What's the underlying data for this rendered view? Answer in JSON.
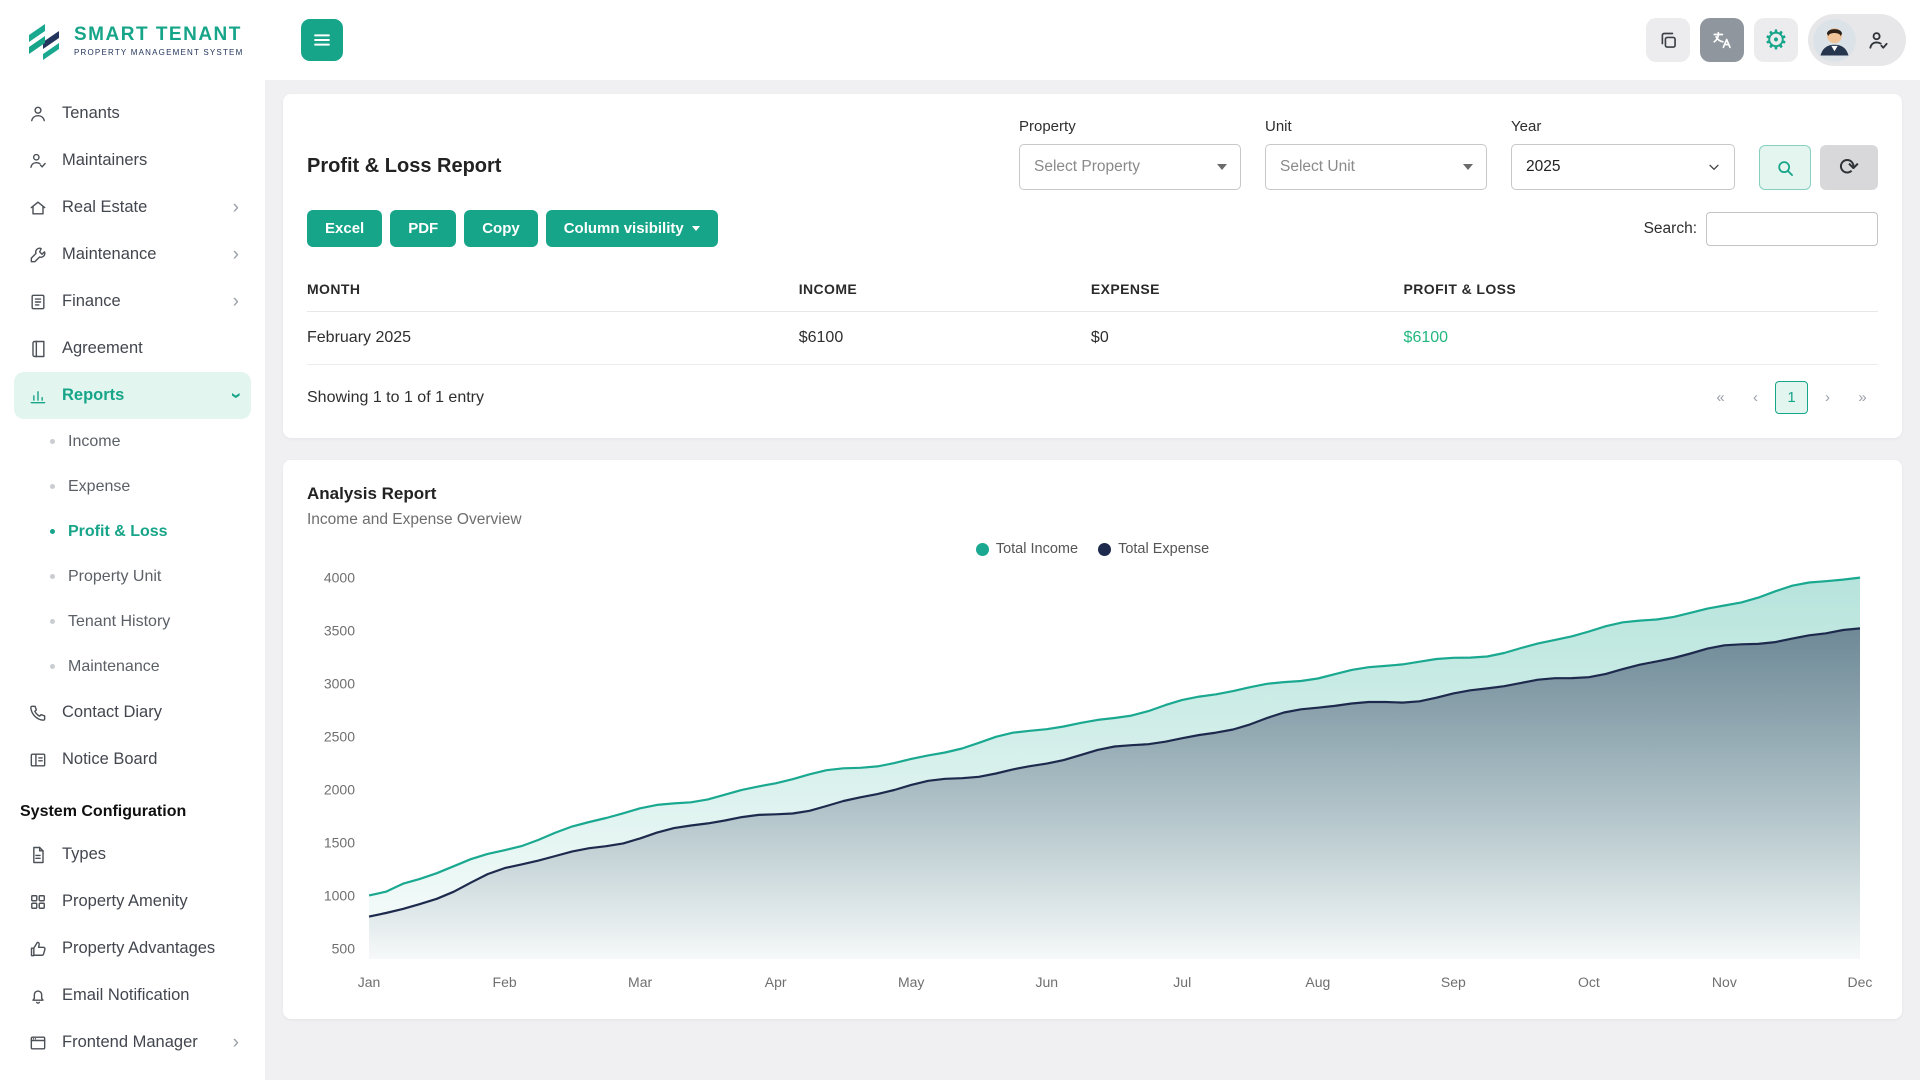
{
  "colors": {
    "primary": "#17A589",
    "primary_light": "#E3F5EF",
    "income": "#1AA990",
    "expense": "#1E2A4D",
    "profit": "#23B77E"
  },
  "icons": {
    "settings_glyph": "⚙",
    "refresh_glyph": "⟳",
    "chevron_right": "›"
  },
  "brand": {
    "name": "SMART TENANT",
    "tagline": "PROPERTY MANAGEMENT SYSTEM"
  },
  "sidebar": {
    "items": [
      {
        "label": "Tenants",
        "icon": "person"
      },
      {
        "label": "Maintainers",
        "icon": "person-check"
      },
      {
        "label": "Real Estate",
        "icon": "home",
        "chevron": "right"
      },
      {
        "label": "Maintenance",
        "icon": "wrench",
        "chevron": "right"
      },
      {
        "label": "Finance",
        "icon": "finance",
        "chevron": "right"
      },
      {
        "label": "Agreement",
        "icon": "agreement"
      },
      {
        "label": "Reports",
        "icon": "reports",
        "chevron": "down",
        "active": true,
        "children": [
          "Income",
          "Expense",
          "Profit & Loss",
          "Property Unit",
          "Tenant History",
          "Maintenance"
        ],
        "active_child": "Profit & Loss"
      },
      {
        "label": "Contact Diary",
        "icon": "phone"
      },
      {
        "label": "Notice Board",
        "icon": "notice-board"
      }
    ],
    "section_title": "System Configuration",
    "config_items": [
      {
        "label": "Types",
        "icon": "file"
      },
      {
        "label": "Property Amenity",
        "icon": "grid"
      },
      {
        "label": "Property Advantages",
        "icon": "thumbs-up"
      },
      {
        "label": "Email Notification",
        "icon": "bell"
      },
      {
        "label": "Frontend Manager",
        "icon": "browser",
        "chevron": "right"
      }
    ]
  },
  "report": {
    "title": "Profit & Loss Report",
    "filters": {
      "property_label": "Property",
      "property_placeholder": "Select Property",
      "unit_label": "Unit",
      "unit_placeholder": "Select Unit",
      "year_label": "Year",
      "year_value": "2025"
    },
    "toolbar": {
      "buttons": [
        "Excel",
        "PDF",
        "Copy"
      ],
      "column_visibility": "Column visibility",
      "search_label": "Search:"
    },
    "table": {
      "headers": [
        "MONTH",
        "INCOME",
        "EXPENSE",
        "PROFIT & LOSS"
      ],
      "rows": [
        [
          "February 2025",
          "$6100",
          "$0",
          "$6100"
        ]
      ]
    },
    "footer": {
      "showing": "Showing 1 to 1 of 1 entry",
      "pagination": [
        "«",
        "‹",
        "1",
        "›",
        "»"
      ],
      "active_page": "1"
    }
  },
  "analysis": {
    "title": "Analysis Report",
    "subtitle": "Income and Expense Overview"
  },
  "chart_data": {
    "type": "area",
    "title": "Income and Expense Overview",
    "x": [
      "Jan",
      "Feb",
      "Mar",
      "Apr",
      "May",
      "Jun",
      "Jul",
      "Aug",
      "Sep",
      "Oct",
      "Nov",
      "Dec"
    ],
    "series": [
      {
        "name": "Total Income",
        "color": "#1AA990",
        "values": [
          1000,
          1450,
          1800,
          2060,
          2300,
          2570,
          2820,
          3080,
          3230,
          3480,
          3750,
          4000
        ]
      },
      {
        "name": "Total Expense",
        "color": "#1E2A4D",
        "values": [
          800,
          1230,
          1560,
          1770,
          2020,
          2260,
          2490,
          2760,
          2900,
          3090,
          3330,
          3520
        ]
      }
    ],
    "yticks": [
      500,
      1000,
      1500,
      2000,
      2500,
      3000,
      3500,
      4000
    ],
    "ylim": [
      400,
      4100
    ],
    "xlabel": "",
    "ylabel": "",
    "grid": false,
    "legend_position": "top-center"
  }
}
